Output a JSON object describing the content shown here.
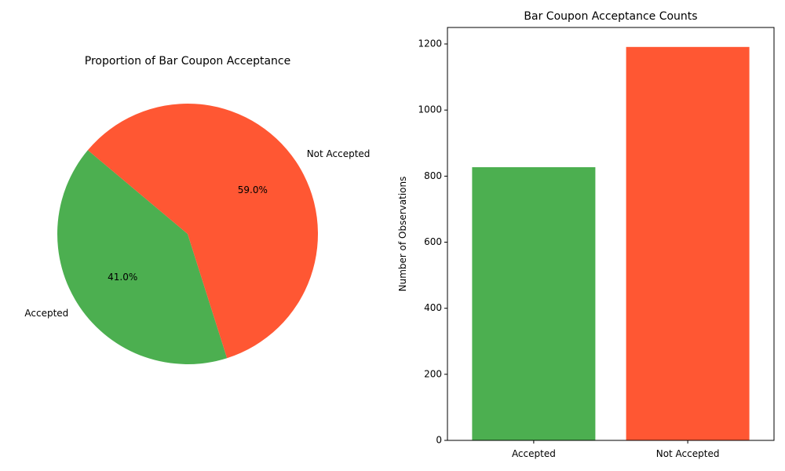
{
  "chart_data": [
    {
      "type": "pie",
      "title": "Proportion of Bar Coupon Acceptance",
      "labels": [
        "Accepted",
        "Not Accepted"
      ],
      "values": [
        41.0,
        59.0
      ],
      "value_labels": [
        "41.0%",
        "59.0%"
      ],
      "colors": [
        "#4caf50",
        "#ff5733"
      ]
    },
    {
      "type": "bar",
      "title": "Bar Coupon Acceptance Counts",
      "categories": [
        "Accepted",
        "Not Accepted"
      ],
      "values": [
        827,
        1191
      ],
      "colors": [
        "#4caf50",
        "#ff5733"
      ],
      "xlabel": "",
      "ylabel": "Number of Observations",
      "ylim": [
        0,
        1250
      ],
      "yticks": [
        0,
        200,
        400,
        600,
        800,
        1000,
        1200
      ],
      "grid": false
    }
  ]
}
